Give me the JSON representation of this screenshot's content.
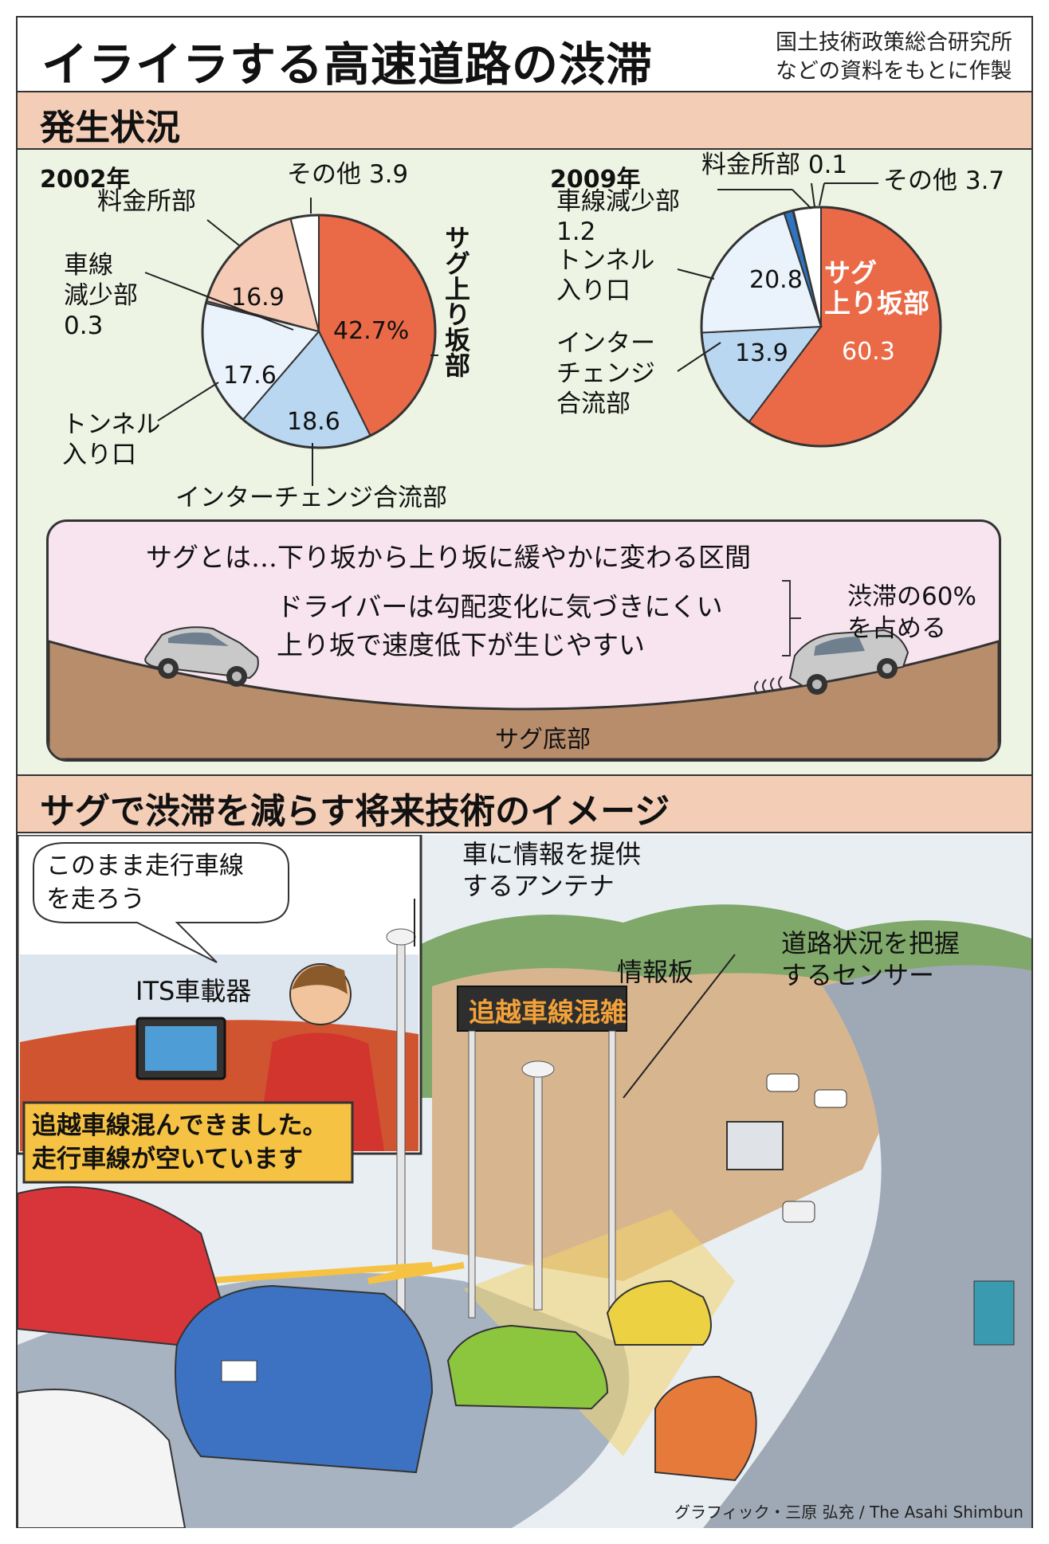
{
  "header": {
    "title": "イライラする高速道路の渋滞",
    "source_line1": "国土技術政策総合研究所",
    "source_line2": "などの資料をもとに作製"
  },
  "section1": {
    "heading": "発生状況"
  },
  "chart_data": [
    {
      "type": "pie",
      "title": "2002年",
      "unit": "%",
      "slices": [
        {
          "label": "サグ上り坂部",
          "value": 42.7,
          "display": "42.7%",
          "color": "#ea6a48"
        },
        {
          "label": "インターチェンジ合流部",
          "value": 18.6,
          "display": "18.6",
          "color": "#b9d7f0"
        },
        {
          "label": "トンネル入り口",
          "value": 17.6,
          "display": "17.6",
          "color": "#eaf3fb"
        },
        {
          "label": "車線減少部",
          "value": 0.3,
          "display": "0.3",
          "color": "#6a98c6"
        },
        {
          "label": "料金所部",
          "value": 16.9,
          "display": "16.9",
          "color": "#f5cbb6"
        },
        {
          "label": "その他",
          "value": 3.9,
          "display": "3.9",
          "color": "#ffffff"
        }
      ],
      "label_lines": {
        "sag": "サグ上り坂部",
        "ic": "インターチェンジ合流部",
        "tunnel1": "トンネル",
        "tunnel2": "入り口",
        "lane1": "車線",
        "lane2": "減少部",
        "lane3": "0.3",
        "toll": "料金所部",
        "other": "その他 3.9"
      }
    },
    {
      "type": "pie",
      "title": "2009年",
      "unit": "%",
      "slices": [
        {
          "label": "サグ上り坂部",
          "value": 60.3,
          "display": "60.3",
          "color": "#ea6a48"
        },
        {
          "label": "インターチェンジ合流部",
          "value": 13.9,
          "display": "13.9",
          "color": "#b9d7f0"
        },
        {
          "label": "トンネル入り口",
          "value": 20.8,
          "display": "20.8",
          "color": "#eaf3fb"
        },
        {
          "label": "車線減少部",
          "value": 1.2,
          "display": "1.2",
          "color": "#2f74bd"
        },
        {
          "label": "料金所部",
          "value": 0.1,
          "display": "0.1",
          "color": "#6a98c6"
        },
        {
          "label": "その他",
          "value": 3.7,
          "display": "3.7",
          "color": "#ffffff"
        }
      ],
      "label_lines": {
        "sag1": "サグ",
        "sag2": "上り坂部",
        "ic1": "インター",
        "ic2": "チェンジ",
        "ic3": "合流部",
        "tunnel1": "トンネル",
        "tunnel2": "入り口",
        "lane1": "車線減少部",
        "lane2": "1.2",
        "toll": "料金所部 0.1",
        "other": "その他 3.7"
      }
    }
  ],
  "sag": {
    "definition": "サグとは…下り坂から上り坂に緩やかに変わる区間",
    "line1": "ドライバーは勾配変化に気づきにくい",
    "line2": "上り坂で速度低下が生じやすい",
    "note1": "渋滞の60%",
    "note2": "を占める",
    "bottom": "サグ底部",
    "colors": {
      "ground": "#b88d6c",
      "sky": "#f8e4ef"
    }
  },
  "section2": {
    "heading": "サグで渋滞を減らす将来技術のイメージ",
    "antenna1": "車に情報を提供",
    "antenna2": "するアンテナ",
    "sensor1": "道路状況を把握",
    "sensor2": "するセンサー",
    "board_label": "情報板",
    "board_text": "追越車線混雑",
    "its_label": "ITS車載器",
    "bubble1": "このまま走行車線",
    "bubble2": "を走ろう",
    "message1": "追越車線混んできました。",
    "message2": "走行車線が空いています",
    "credit": "グラフィック・三原 弘充 / The Asahi Shimbun"
  }
}
